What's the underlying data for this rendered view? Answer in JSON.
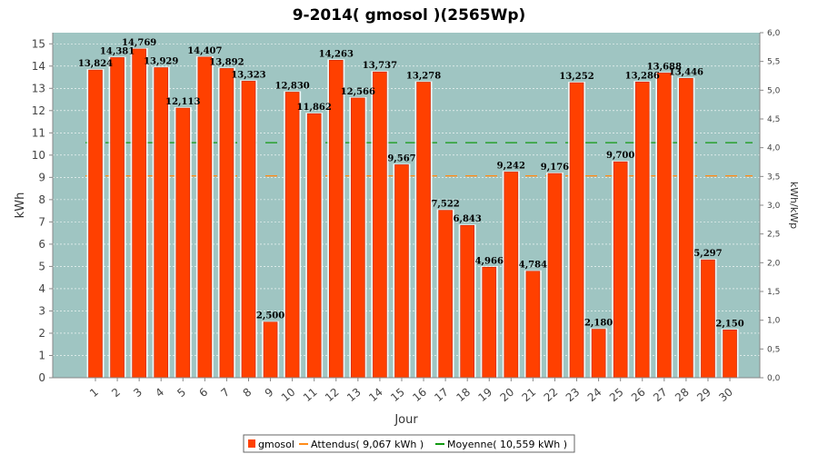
{
  "chart_data": {
    "type": "bar",
    "title": "9-2014( gmosol )(2565Wp)",
    "xlabel": "Jour",
    "ylabel": "kWh",
    "ylabel_right": "kWh/kWp",
    "ylim": [
      0,
      15.5
    ],
    "ylim_right": [
      0,
      6.0
    ],
    "yticks": [
      "0",
      "1",
      "2",
      "3",
      "4",
      "5",
      "6",
      "7",
      "8",
      "9",
      "10",
      "11",
      "12",
      "13",
      "14",
      "15"
    ],
    "yticks_right": [
      "0,0",
      "0,5",
      "1,0",
      "1,5",
      "2,0",
      "2,5",
      "3,0",
      "3,5",
      "4,0",
      "4,5",
      "5,0",
      "5,5",
      "6,0"
    ],
    "categories": [
      "1",
      "2",
      "3",
      "4",
      "5",
      "6",
      "7",
      "8",
      "9",
      "10",
      "11",
      "12",
      "13",
      "14",
      "15",
      "16",
      "17",
      "18",
      "19",
      "20",
      "21",
      "22",
      "23",
      "24",
      "25",
      "26",
      "27",
      "28",
      "29",
      "30"
    ],
    "series": [
      {
        "name": "gmosol",
        "values": [
          13.824,
          14.381,
          14.769,
          13.929,
          12.113,
          14.407,
          13.892,
          13.323,
          2.5,
          12.83,
          11.862,
          14.263,
          12.566,
          13.737,
          9.567,
          13.278,
          7.522,
          6.843,
          4.966,
          9.242,
          4.784,
          9.176,
          13.252,
          2.18,
          9.7,
          13.286,
          13.688,
          13.446,
          5.297,
          2.15
        ],
        "labels": [
          "13,824",
          "14,381",
          "14,769",
          "13,929",
          "12,113",
          "14,407",
          "13,892",
          "13,323",
          "2,500",
          "12,830",
          "11,862",
          "14,263",
          "12,566",
          "13,737",
          "9,567",
          "13,278",
          "7,522",
          "6,843",
          "4,966",
          "9,242",
          "4,784",
          "9,176",
          "13,252",
          "2,180",
          "9,700",
          "13,286",
          "13,688",
          "13,446",
          "5,297",
          "2,150"
        ]
      }
    ],
    "reference_lines": [
      {
        "name": "Attendus",
        "value": 9.067
      },
      {
        "name": "Moyenne",
        "value": 10.559
      }
    ],
    "legend": {
      "placement": "bottom",
      "items": [
        "gmosol",
        "Attendus( 9,067 kWh )",
        "Moyenne( 10,559 kWh )"
      ]
    },
    "grid": true,
    "colors": {
      "bar": "#ff4000",
      "bar_edge": "#cc2200",
      "plot_bg": "#9fc5c2",
      "attendus": "#ff8c1a",
      "moyenne": "#119911",
      "grid": "#ffffff"
    }
  }
}
